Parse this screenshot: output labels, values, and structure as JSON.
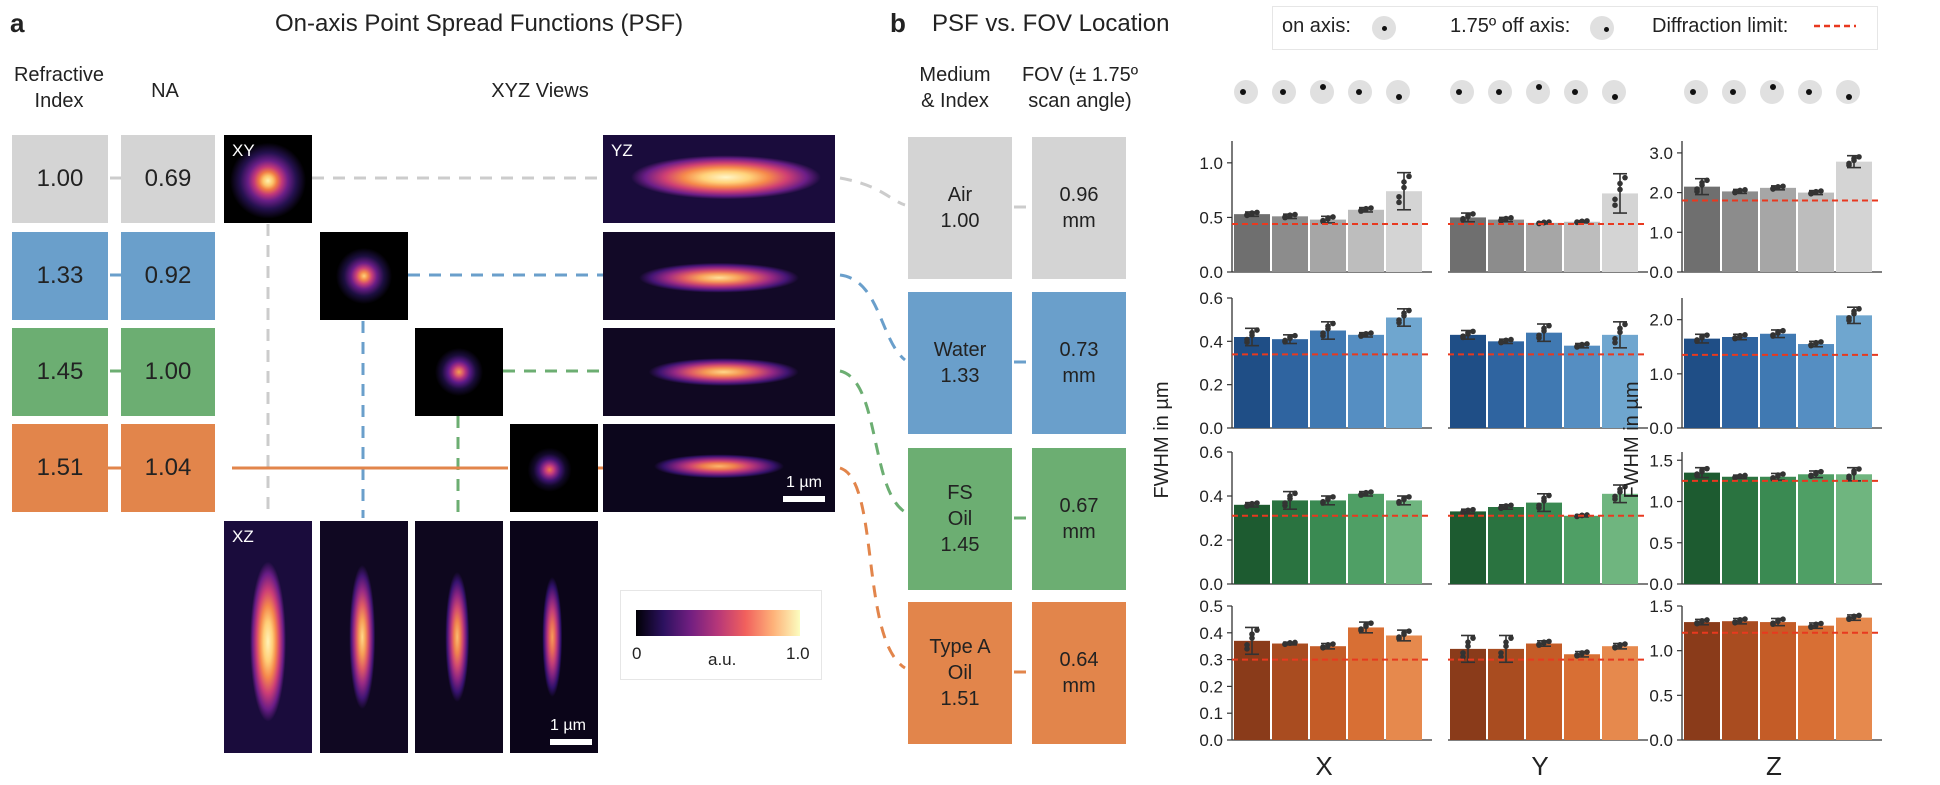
{
  "panel_a": {
    "letter": "a",
    "title": "On-axis Point Spread Functions (PSF)",
    "col_ri": "Refractive\nIndex",
    "col_na": "NA",
    "col_xyz": "XYZ Views",
    "rows": [
      {
        "ri": "1.00",
        "na": "0.69",
        "color": "#d4d4d4"
      },
      {
        "ri": "1.33",
        "na": "0.92",
        "color": "#6a9fcb"
      },
      {
        "ri": "1.45",
        "na": "1.00",
        "color": "#6cae72"
      },
      {
        "ri": "1.51",
        "na": "1.04",
        "color": "#e2854b"
      }
    ],
    "xy_label": "XY",
    "yz_label": "YZ",
    "xz_label": "XZ",
    "scale_label": "1 µm",
    "colorbar": {
      "min": "0",
      "mid": "a.u.",
      "max": "1.0"
    }
  },
  "panel_b": {
    "letter": "b",
    "title": "PSF vs. FOV Location",
    "col_medium": "Medium\n& Index",
    "col_fov": "FOV (± 1.75º\nscan angle)",
    "rows": [
      {
        "medium": "Air\n1.00",
        "fov": "0.96\nmm"
      },
      {
        "medium": "Water\n1.33",
        "fov": "0.73\nmm"
      },
      {
        "medium": "FS\nOil\n1.45",
        "fov": "0.67\nmm"
      },
      {
        "medium": "Type A\nOil\n1.51",
        "fov": "0.64\nmm"
      }
    ]
  },
  "legend": {
    "on_axis": "on axis:",
    "off_axis": "1.75º off axis:",
    "diffraction": "Diffraction limit:"
  },
  "chart_data": {
    "type": "bar",
    "ylabel": "FWHM in µm",
    "columns": [
      "X",
      "Y",
      "Z"
    ],
    "media": [
      "Air",
      "Water",
      "FS Oil",
      "Type A Oil"
    ],
    "positions": 5,
    "palettes": [
      [
        "#6f6f6f",
        "#8c8c8c",
        "#a6a6a6",
        "#bdbdbd",
        "#d4d4d4"
      ],
      [
        "#1f4e86",
        "#2f64a0",
        "#4079b2",
        "#558ec2",
        "#6fa6cf"
      ],
      [
        "#1d5b30",
        "#2a7340",
        "#3a8a52",
        "#4f9f65",
        "#6fb57f"
      ],
      [
        "#8a3b1a",
        "#a94c20",
        "#c45c27",
        "#d86f34",
        "#e6894d"
      ]
    ],
    "panels": [
      {
        "medium": "Air",
        "axis": "X",
        "ylim": [
          0,
          1.2
        ],
        "ticks": [
          "0.0",
          "0.5",
          "1.0"
        ],
        "tick_values": [
          0,
          0.5,
          1.0
        ],
        "diffraction": 0.44,
        "values": [
          0.53,
          0.51,
          0.48,
          0.57,
          0.74
        ],
        "err": [
          0.02,
          0.02,
          0.03,
          0.02,
          0.17
        ]
      },
      {
        "medium": "Air",
        "axis": "Y",
        "ylim": [
          0,
          1.2
        ],
        "ticks": [],
        "tick_values": [
          0,
          0.5,
          1.0
        ],
        "diffraction": 0.44,
        "values": [
          0.5,
          0.48,
          0.45,
          0.46,
          0.72
        ],
        "err": [
          0.04,
          0.02,
          0.01,
          0.01,
          0.18
        ]
      },
      {
        "medium": "Air",
        "axis": "Z",
        "ylim": [
          0,
          3.3
        ],
        "ticks": [
          "0.0",
          "1.0",
          "2.0",
          "3.0"
        ],
        "tick_values": [
          0,
          1.0,
          2.0,
          3.0
        ],
        "diffraction": 1.8,
        "values": [
          2.15,
          2.03,
          2.12,
          2.0,
          2.78
        ],
        "err": [
          0.2,
          0.05,
          0.05,
          0.05,
          0.15
        ]
      },
      {
        "medium": "Water",
        "axis": "X",
        "ylim": [
          0,
          0.6
        ],
        "ticks": [
          "0.0",
          "0.2",
          "0.4",
          "0.6"
        ],
        "tick_values": [
          0,
          0.2,
          0.4,
          0.6
        ],
        "diffraction": 0.34,
        "values": [
          0.42,
          0.41,
          0.45,
          0.43,
          0.51
        ],
        "err": [
          0.04,
          0.02,
          0.04,
          0.01,
          0.04
        ]
      },
      {
        "medium": "Water",
        "axis": "Y",
        "ylim": [
          0,
          0.6
        ],
        "ticks": [],
        "tick_values": [
          0,
          0.2,
          0.4,
          0.6
        ],
        "diffraction": 0.34,
        "values": [
          0.43,
          0.4,
          0.44,
          0.38,
          0.43
        ],
        "err": [
          0.02,
          0.01,
          0.04,
          0.01,
          0.06
        ]
      },
      {
        "medium": "Water",
        "axis": "Z",
        "ylim": [
          0,
          2.4
        ],
        "ticks": [
          "0.0",
          "1.0",
          "2.0"
        ],
        "tick_values": [
          0,
          1.0,
          2.0
        ],
        "diffraction": 1.35,
        "values": [
          1.65,
          1.68,
          1.74,
          1.55,
          2.08
        ],
        "err": [
          0.08,
          0.05,
          0.07,
          0.05,
          0.15
        ]
      },
      {
        "medium": "FS Oil",
        "axis": "X",
        "ylim": [
          0,
          0.6
        ],
        "ticks": [
          "0.0",
          "0.2",
          "0.4",
          "0.6"
        ],
        "tick_values": [
          0,
          0.2,
          0.4,
          0.6
        ],
        "diffraction": 0.31,
        "values": [
          0.36,
          0.38,
          0.38,
          0.41,
          0.38
        ],
        "err": [
          0.01,
          0.04,
          0.02,
          0.01,
          0.02
        ]
      },
      {
        "medium": "FS Oil",
        "axis": "Y",
        "ylim": [
          0,
          0.6
        ],
        "ticks": [],
        "tick_values": [
          0,
          0.2,
          0.4,
          0.6
        ],
        "diffraction": 0.31,
        "values": [
          0.33,
          0.35,
          0.37,
          0.31,
          0.41
        ],
        "err": [
          0.01,
          0.01,
          0.04,
          0.005,
          0.04
        ]
      },
      {
        "medium": "FS Oil",
        "axis": "Z",
        "ylim": [
          0,
          1.6
        ],
        "ticks": [
          "0.0",
          "0.5",
          "1.0",
          "1.5"
        ],
        "tick_values": [
          0,
          0.5,
          1.0,
          1.5
        ],
        "diffraction": 1.25,
        "values": [
          1.35,
          1.3,
          1.3,
          1.33,
          1.33
        ],
        "err": [
          0.06,
          0.02,
          0.04,
          0.04,
          0.08
        ]
      },
      {
        "medium": "Type A Oil",
        "axis": "X",
        "ylim": [
          0,
          0.5
        ],
        "ticks": [
          "0.0",
          "0.1",
          "0.2",
          "0.3",
          "0.4",
          "0.5"
        ],
        "tick_values": [
          0,
          0.1,
          0.2,
          0.3,
          0.4,
          0.5
        ],
        "diffraction": 0.3,
        "values": [
          0.37,
          0.36,
          0.35,
          0.42,
          0.39
        ],
        "err": [
          0.05,
          0.005,
          0.01,
          0.02,
          0.02
        ]
      },
      {
        "medium": "Type A Oil",
        "axis": "Y",
        "ylim": [
          0,
          0.5
        ],
        "ticks": [],
        "tick_values": [
          0,
          0.1,
          0.2,
          0.3,
          0.4,
          0.5
        ],
        "diffraction": 0.3,
        "values": [
          0.34,
          0.34,
          0.36,
          0.32,
          0.35
        ],
        "err": [
          0.05,
          0.05,
          0.01,
          0.01,
          0.01
        ]
      },
      {
        "medium": "Type A Oil",
        "axis": "Z",
        "ylim": [
          0,
          1.5
        ],
        "ticks": [
          "0.0",
          "0.5",
          "1.0",
          "1.5"
        ],
        "tick_values": [
          0,
          0.5,
          1.0,
          1.5
        ],
        "diffraction": 1.2,
        "values": [
          1.32,
          1.33,
          1.32,
          1.28,
          1.37
        ],
        "err": [
          0.03,
          0.03,
          0.04,
          0.03,
          0.03
        ]
      }
    ]
  }
}
